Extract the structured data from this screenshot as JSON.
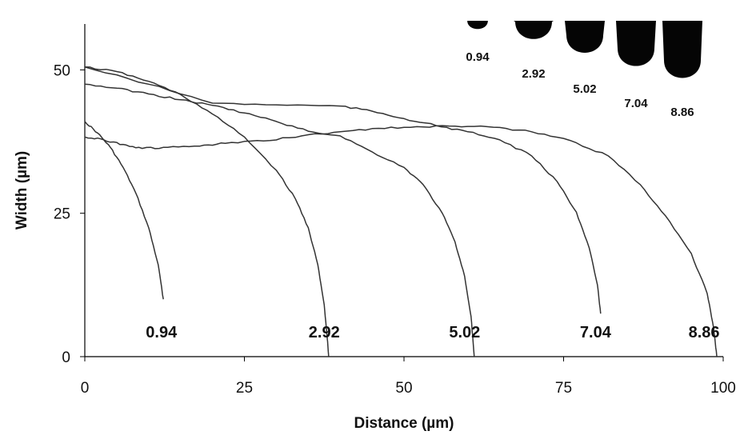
{
  "chart_data": {
    "type": "line",
    "title": "",
    "xlabel": "Distance (µm)",
    "ylabel": "Width (µm)",
    "xlim": [
      0,
      100
    ],
    "ylim": [
      0,
      58
    ],
    "xticks": [
      0,
      25,
      50,
      75,
      100
    ],
    "yticks": [
      0,
      25,
      50
    ],
    "grid": false,
    "legend": "none",
    "series": [
      {
        "label": "0.94",
        "points": [
          [
            0,
            41
          ],
          [
            2,
            39
          ],
          [
            4,
            36.5
          ],
          [
            6,
            33
          ],
          [
            8,
            28.5
          ],
          [
            10,
            22.5
          ],
          [
            11.5,
            16
          ],
          [
            12.3,
            10
          ]
        ]
      },
      {
        "label": "2.92",
        "points": [
          [
            0,
            50.5
          ],
          [
            5,
            49.7
          ],
          [
            10,
            48
          ],
          [
            15,
            45.7
          ],
          [
            20,
            42.3
          ],
          [
            25,
            38.3
          ],
          [
            30,
            32.5
          ],
          [
            33,
            27.5
          ],
          [
            35,
            22.5
          ],
          [
            36.5,
            16
          ],
          [
            37.5,
            9
          ],
          [
            38,
            3
          ],
          [
            38.2,
            0
          ]
        ]
      },
      {
        "label": "5.02",
        "points": [
          [
            0,
            47.5
          ],
          [
            5,
            46.8
          ],
          [
            10,
            45.8
          ],
          [
            15,
            44.8
          ],
          [
            20,
            43.8
          ],
          [
            25,
            42.5
          ],
          [
            30,
            41
          ],
          [
            35,
            39.3
          ],
          [
            40,
            38.5
          ],
          [
            45,
            35.7
          ],
          [
            50,
            33
          ],
          [
            53,
            30
          ],
          [
            56,
            25
          ],
          [
            58,
            20
          ],
          [
            59.5,
            14
          ],
          [
            60.5,
            7
          ],
          [
            61,
            0
          ]
        ]
      },
      {
        "label": "7.04",
        "points": [
          [
            0,
            50.5
          ],
          [
            10,
            47.5
          ],
          [
            20,
            44.2
          ],
          [
            30,
            43.9
          ],
          [
            40,
            43.7
          ],
          [
            45,
            42.8
          ],
          [
            50,
            41.5
          ],
          [
            55,
            40.3
          ],
          [
            60,
            39.2
          ],
          [
            65,
            37.8
          ],
          [
            70,
            35
          ],
          [
            74,
            30.5
          ],
          [
            77,
            25.2
          ],
          [
            79,
            19
          ],
          [
            80.3,
            12.5
          ],
          [
            80.8,
            7.5
          ]
        ]
      },
      {
        "label": "8.86",
        "points": [
          [
            0,
            38.3
          ],
          [
            3,
            37.8
          ],
          [
            6,
            37
          ],
          [
            9,
            36.3
          ],
          [
            13,
            36.5
          ],
          [
            18,
            36.7
          ],
          [
            22,
            37.2
          ],
          [
            28,
            37.6
          ],
          [
            34,
            38.5
          ],
          [
            40,
            39.2
          ],
          [
            46,
            39.8
          ],
          [
            52,
            40.1
          ],
          [
            58,
            40.2
          ],
          [
            64,
            40
          ],
          [
            70,
            39.2
          ],
          [
            76,
            37.7
          ],
          [
            82,
            35
          ],
          [
            87,
            30
          ],
          [
            91,
            24.5
          ],
          [
            95,
            18
          ],
          [
            97.5,
            11
          ],
          [
            98.5,
            5
          ],
          [
            99,
            0
          ]
        ]
      }
    ],
    "curve_labels": [
      {
        "text": "0.94",
        "x": 12,
        "y": 2.5
      },
      {
        "text": "2.92",
        "x": 37.5,
        "y": 2.5
      },
      {
        "text": "5.02",
        "x": 59.5,
        "y": 2.5
      },
      {
        "text": "7.04",
        "x": 80,
        "y": 2.5
      },
      {
        "text": "8.86",
        "x": 97,
        "y": 2.5
      }
    ],
    "inset_droplets": [
      {
        "label": "0.94",
        "length": 0.94
      },
      {
        "label": "2.92",
        "length": 2.92
      },
      {
        "label": "5.02",
        "length": 5.02
      },
      {
        "label": "7.04",
        "length": 7.04
      },
      {
        "label": "8.86",
        "length": 8.86
      }
    ],
    "colors": {
      "curve": "#333333",
      "axis": "#000000",
      "droplet": "#050505",
      "text": "#111111"
    }
  }
}
